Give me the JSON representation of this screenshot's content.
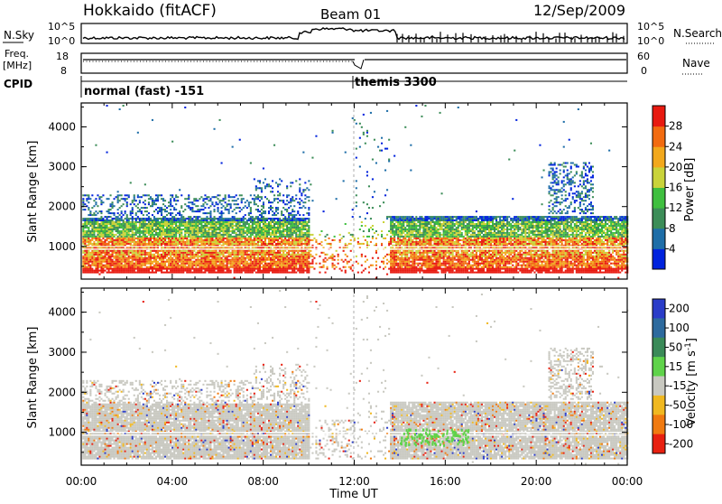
{
  "header": {
    "title": "Hokkaido (fitACF)",
    "beam": "Beam 01",
    "date": "12/Sep/2009"
  },
  "top_panels": {
    "nsky_label": "N.Sky",
    "nsky_ticks": [
      "10^5",
      "10^0"
    ],
    "nsearch_label": "N.Search",
    "nsearch_ticks": [
      "10^5",
      "10^0"
    ],
    "freq_label": "Freq.",
    "freq_unit": "[MHz]",
    "freq_ticks": [
      "18",
      "8"
    ],
    "nave_label": "Nave",
    "nave_ticks": [
      "60",
      "0"
    ],
    "cpid_label": "CPID",
    "cpid_modes": [
      {
        "name": "normal (fast) -151",
        "start_hour": 0
      },
      {
        "name": "themis 3300",
        "start_hour": 12.0
      }
    ]
  },
  "colors": {
    "power_scale": [
      "#0022dd",
      "#1e6ea8",
      "#3c8d58",
      "#3fbf3f",
      "#c9d33a",
      "#f2a81c",
      "#f26b10",
      "#e81a10"
    ],
    "velocity_scale": [
      "#2a3cc8",
      "#2d6a9e",
      "#3a8a58",
      "#5fd34a",
      "#c8c8c0",
      "#f0b820",
      "#f07a10",
      "#e82010"
    ]
  },
  "chart_data": [
    {
      "type": "heatmap",
      "name": "power",
      "xlabel": "",
      "ylabel": "Slant Range [km]",
      "xlim": [
        0,
        24
      ],
      "ylim": [
        180,
        4600
      ],
      "yticks": [
        "1000",
        "2000",
        "3000",
        "4000"
      ],
      "colorbar_label": "Power [dB]",
      "colorbar_ticks": [
        "4",
        "8",
        "12",
        "16",
        "20",
        "24",
        "28"
      ],
      "colorbar_range": [
        0,
        30
      ],
      "grid": false
    },
    {
      "type": "heatmap",
      "name": "velocity",
      "xlabel": "Time UT",
      "ylabel": "Slant Range [km]",
      "xlim": [
        0,
        24
      ],
      "ylim": [
        180,
        4600
      ],
      "xticks": [
        "00:00",
        "04:00",
        "08:00",
        "12:00",
        "16:00",
        "20:00",
        "00:00"
      ],
      "yticks": [
        "1000",
        "2000",
        "3000",
        "4000"
      ],
      "colorbar_label": "Velocity [m s",
      "colorbar_label_sup": "-1",
      "colorbar_ticks": [
        "200",
        "100",
        "50",
        "15",
        "-15",
        "-50",
        "-100",
        "-200"
      ],
      "grid": false
    }
  ]
}
